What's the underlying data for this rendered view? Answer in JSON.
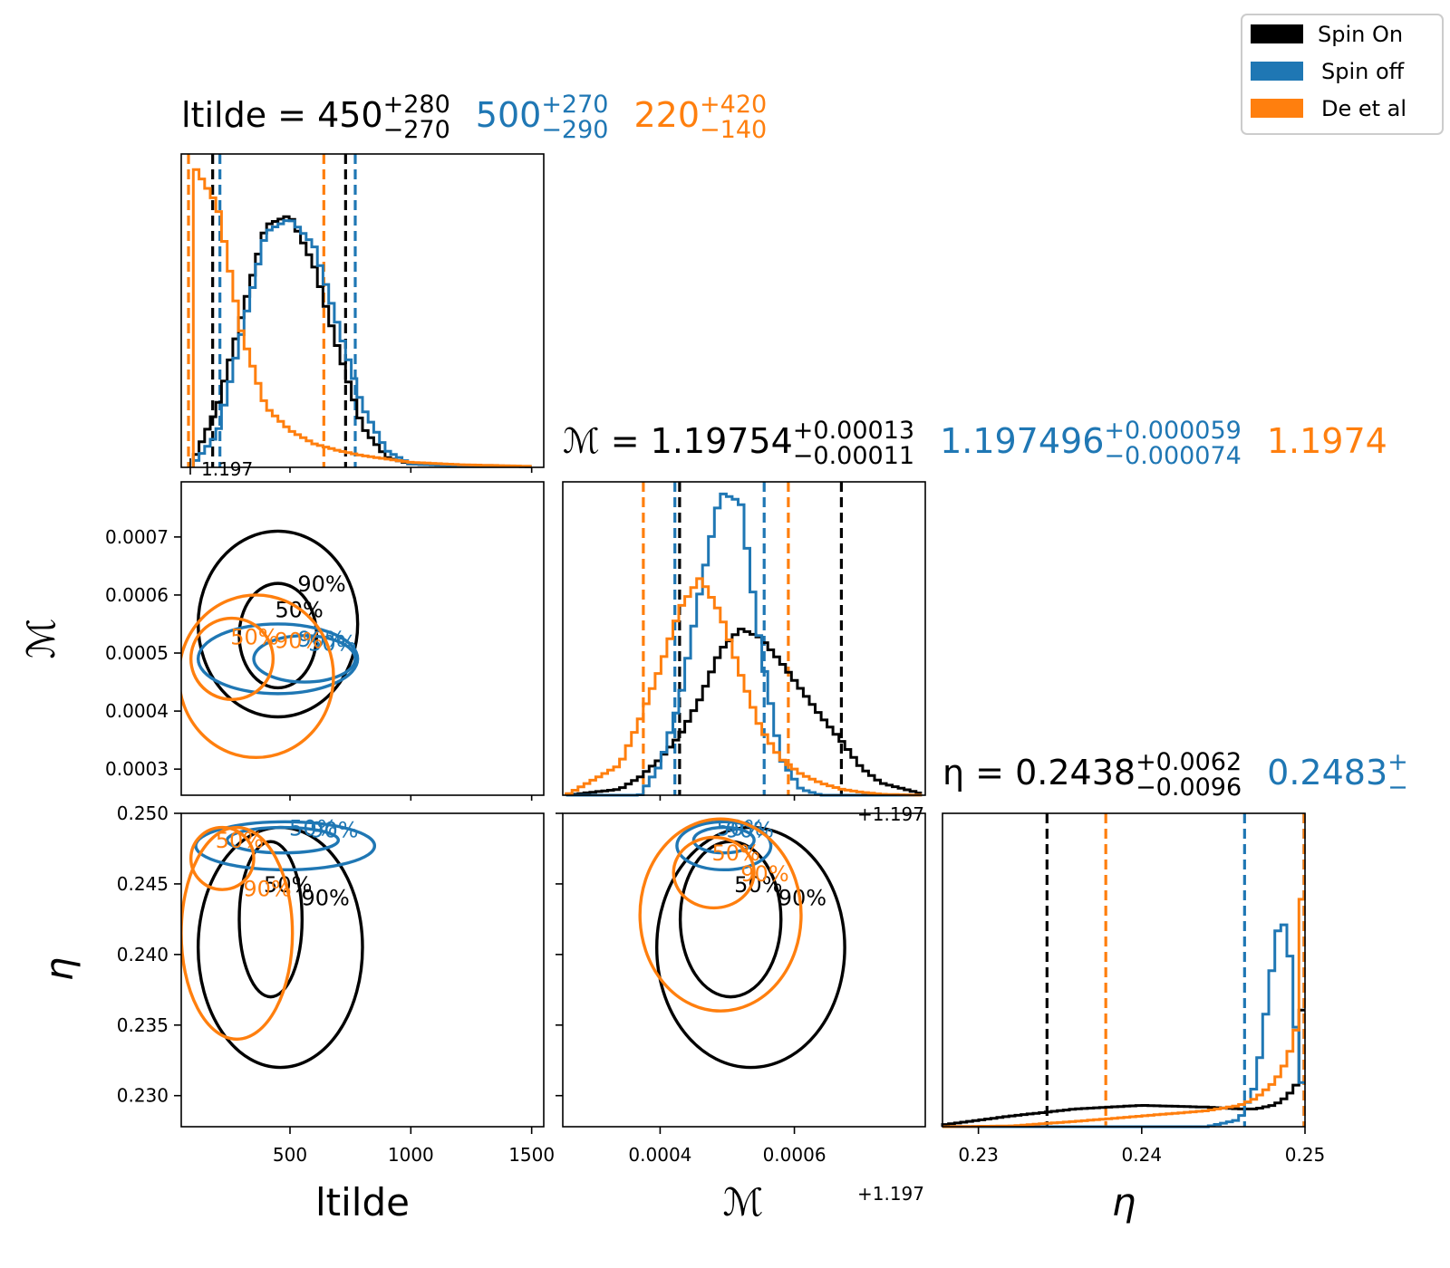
{
  "colors": {
    "spin_on": "#000000",
    "spin_off": "#1f77b4",
    "de_et_al": "#ff7f0e"
  },
  "legend": {
    "placement": "top-right",
    "entries": [
      {
        "label": " Spin On",
        "color": "#000000"
      },
      {
        "label": "Spin off",
        "color": "#1f77b4"
      },
      {
        "label": "De et al",
        "color": "#ff7f0e"
      }
    ]
  },
  "chart_data": {
    "type": "corner",
    "parameters": [
      {
        "name": "ltilde",
        "label": "ltilde",
        "range": [
          50,
          1550
        ],
        "ticks": [
          "500",
          "1000",
          "1500"
        ],
        "tick_values": [
          500,
          1000,
          1500
        ]
      },
      {
        "name": "mchirp",
        "label": "ℳ",
        "range": [
          0.000255,
          0.000795
        ],
        "ticks": [
          "0.0003",
          "0.0004",
          "0.0005",
          "0.0006",
          "0.0007"
        ],
        "tick_values": [
          0.0003,
          0.0004,
          0.0005,
          0.0006,
          0.0007
        ],
        "bottom_ticks": [
          "0.0004",
          "0.0006"
        ],
        "bottom_tick_values": [
          0.0004,
          0.0006
        ],
        "offset_label": "+1.197"
      },
      {
        "name": "eta",
        "label": "η",
        "range": [
          0.2278,
          0.25
        ],
        "ticks": [
          "0.230",
          "0.235",
          "0.240",
          "0.245",
          "0.250"
        ],
        "tick_values": [
          0.23,
          0.235,
          0.24,
          0.245,
          0.25
        ],
        "bottom_ticks": [
          "0.23",
          "0.24",
          "0.25"
        ],
        "bottom_tick_values": [
          0.23,
          0.24,
          0.25
        ]
      }
    ],
    "titles": [
      {
        "prefix": "ltilde = ",
        "entries": [
          {
            "median": "450",
            "plus": "+280",
            "minus": "−270",
            "color": "#000000"
          },
          {
            "median": "500",
            "plus": "+270",
            "minus": "−290",
            "color": "#1f77b4"
          },
          {
            "median": "220",
            "plus": "+420",
            "minus": "−140",
            "color": "#ff7f0e"
          }
        ]
      },
      {
        "prefix": "ℳ = ",
        "entries": [
          {
            "median": "1.19754",
            "plus": "+0.00013",
            "minus": "−0.00011",
            "color": "#000000"
          },
          {
            "median": "1.197496",
            "plus": "+0.000059",
            "minus": "−0.000074",
            "color": "#1f77b4"
          },
          {
            "median": "1.1974",
            "plus": "",
            "minus": "",
            "color": "#ff7f0e"
          }
        ]
      },
      {
        "prefix": "η = ",
        "entries": [
          {
            "median": "0.2438",
            "plus": "+0.0062",
            "minus": "−0.0096",
            "color": "#000000"
          },
          {
            "median": "0.2483",
            "plus": "+",
            "minus": "−",
            "color": "#1f77b4"
          }
        ]
      }
    ],
    "overflow_tick_labels": [
      {
        "text": "1.197",
        "panel": "ltilde-hist"
      },
      {
        "text": "+1.197",
        "panel": "mchirp-hist"
      }
    ],
    "histograms": {
      "ltilde": {
        "x": [
          100,
          200,
          300,
          400,
          500,
          600,
          700,
          800,
          900,
          1000,
          1200,
          1500
        ],
        "series": [
          {
            "name": "Spin On",
            "color": "#000000",
            "values": [
              0.02,
              0.18,
              0.45,
              0.72,
              0.75,
              0.6,
              0.35,
              0.12,
              0.03,
              0.01,
              0.005,
              0.002
            ]
          },
          {
            "name": "Spin off",
            "color": "#1f77b4",
            "values": [
              0.01,
              0.1,
              0.4,
              0.7,
              0.74,
              0.66,
              0.42,
              0.18,
              0.05,
              0.01,
              0.005,
              0.002
            ]
          },
          {
            "name": "De et al",
            "color": "#ff7f0e",
            "values": [
              0.9,
              0.78,
              0.4,
              0.18,
              0.11,
              0.07,
              0.05,
              0.035,
              0.025,
              0.015,
              0.008,
              0.003
            ]
          }
        ],
        "quantile_lines": [
          {
            "color": "#000000",
            "values": [
              180,
              730
            ]
          },
          {
            "color": "#1f77b4",
            "values": [
              210,
              770
            ]
          },
          {
            "color": "#ff7f0e",
            "values": [
              80,
              640
            ]
          }
        ]
      },
      "mchirp": {
        "x": [
          0.00026,
          0.00034,
          0.00037,
          0.0004,
          0.00043,
          0.00046,
          0.00049,
          0.00052,
          0.00055,
          0.00058,
          0.00061,
          0.00064,
          0.00067,
          0.0007,
          0.00073,
          0.00079
        ],
        "series": [
          {
            "name": "Spin On",
            "color": "#000000",
            "values": [
              0.0,
              0.02,
              0.06,
              0.12,
              0.2,
              0.32,
              0.48,
              0.55,
              0.52,
              0.44,
              0.35,
              0.26,
              0.18,
              0.09,
              0.04,
              0.005
            ]
          },
          {
            "name": "Spin off",
            "color": "#1f77b4",
            "values": [
              0.0,
              0.0,
              0.0,
              0.1,
              0.32,
              0.68,
              1.0,
              0.97,
              0.48,
              0.12,
              0.02,
              0.0,
              0.0,
              0.0,
              0.0,
              0.0
            ]
          },
          {
            "name": "De et al",
            "color": "#ff7f0e",
            "values": [
              0.0,
              0.1,
              0.25,
              0.42,
              0.62,
              0.72,
              0.6,
              0.4,
              0.22,
              0.12,
              0.07,
              0.04,
              0.02,
              0.01,
              0.003,
              0.0
            ]
          }
        ],
        "quantile_lines": [
          {
            "color": "#000000",
            "values": [
              0.000429,
              0.00067
            ]
          },
          {
            "color": "#1f77b4",
            "values": [
              0.000422,
              0.000555
            ]
          },
          {
            "color": "#ff7f0e",
            "values": [
              0.000375,
              0.000591
            ]
          }
        ]
      },
      "eta": {
        "x": [
          0.2278,
          0.232,
          0.236,
          0.24,
          0.244,
          0.246,
          0.247,
          0.248,
          0.2485,
          0.249,
          0.2495,
          0.25
        ],
        "series": [
          {
            "name": "Spin On",
            "color": "#000000",
            "values": [
              0.005,
              0.03,
              0.05,
              0.06,
              0.055,
              0.05,
              0.05,
              0.06,
              0.07,
              0.09,
              0.12,
              0.45
            ]
          },
          {
            "name": "Spin off",
            "color": "#1f77b4",
            "values": [
              0.0,
              0.0,
              0.0,
              0.0,
              0.0,
              0.02,
              0.12,
              0.45,
              0.6,
              0.52,
              0.25,
              0.05
            ]
          },
          {
            "name": "De et al",
            "color": "#ff7f0e",
            "values": [
              0.0,
              0.002,
              0.015,
              0.03,
              0.045,
              0.06,
              0.08,
              0.12,
              0.15,
              0.2,
              0.28,
              0.85
            ]
          }
        ],
        "quantile_lines": [
          {
            "color": "#000000",
            "values": [
              0.2342,
              0.25
            ]
          },
          {
            "color": "#1f77b4",
            "values": [
              0.2463,
              0.25
            ]
          },
          {
            "color": "#ff7f0e",
            "values": [
              0.2378,
              0.25
            ]
          }
        ]
      }
    },
    "contours_2d": {
      "ltilde_mchirp": [
        {
          "color": "#000000",
          "level": "50%",
          "center": [
            450,
            0.00053
          ],
          "radii": [
            160,
            9e-05
          ]
        },
        {
          "color": "#000000",
          "level": "90%",
          "center": [
            450,
            0.00055
          ],
          "radii": [
            330,
            0.00016
          ]
        },
        {
          "color": "#1f77b4",
          "level": "50%",
          "center": [
            560,
            0.00049
          ],
          "radii": [
            210,
            4e-05
          ]
        },
        {
          "color": "#1f77b4",
          "level": "90%",
          "center": [
            450,
            0.00049
          ],
          "radii": [
            330,
            6e-05
          ]
        },
        {
          "color": "#ff7f0e",
          "level": "50%",
          "center": [
            260,
            0.00049
          ],
          "radii": [
            170,
            7e-05
          ]
        },
        {
          "color": "#ff7f0e",
          "level": "90%",
          "center": [
            360,
            0.00046
          ],
          "radii": [
            320,
            0.00014
          ]
        }
      ],
      "ltilde_eta": [
        {
          "color": "#000000",
          "level": "50%",
          "center": [
            420,
            0.2425
          ],
          "radii": [
            130,
            0.0055
          ]
        },
        {
          "color": "#000000",
          "level": "90%",
          "center": [
            460,
            0.2405
          ],
          "radii": [
            340,
            0.0085
          ]
        },
        {
          "color": "#1f77b4",
          "level": "50%",
          "center": [
            470,
            0.2481
          ],
          "radii": [
            230,
            0.0009
          ]
        },
        {
          "color": "#1f77b4",
          "level": "90%",
          "center": [
            480,
            0.2477
          ],
          "radii": [
            370,
            0.0017
          ]
        },
        {
          "color": "#ff7f0e",
          "level": "50%",
          "center": [
            220,
            0.2468
          ],
          "radii": [
            130,
            0.0022
          ]
        },
        {
          "color": "#ff7f0e",
          "level": "90%",
          "center": [
            280,
            0.2415
          ],
          "radii": [
            230,
            0.0075
          ]
        }
      ],
      "mchirp_eta": [
        {
          "color": "#000000",
          "level": "50%",
          "center": [
            0.000505,
            0.2425
          ],
          "radii": [
            7.5e-05,
            0.0055
          ]
        },
        {
          "color": "#000000",
          "level": "90%",
          "center": [
            0.000535,
            0.2405
          ],
          "radii": [
            0.00014,
            0.0085
          ]
        },
        {
          "color": "#1f77b4",
          "level": "50%",
          "center": [
            0.000495,
            0.2481
          ],
          "radii": [
            4.5e-05,
            0.0009
          ]
        },
        {
          "color": "#1f77b4",
          "level": "90%",
          "center": [
            0.000495,
            0.2477
          ],
          "radii": [
            7e-05,
            0.0017
          ]
        },
        {
          "color": "#ff7f0e",
          "level": "50%",
          "center": [
            0.00048,
            0.2458
          ],
          "radii": [
            6e-05,
            0.0025
          ]
        },
        {
          "color": "#ff7f0e",
          "level": "90%",
          "center": [
            0.00049,
            0.2428
          ],
          "radii": [
            0.00012,
            0.0068
          ]
        }
      ]
    }
  }
}
